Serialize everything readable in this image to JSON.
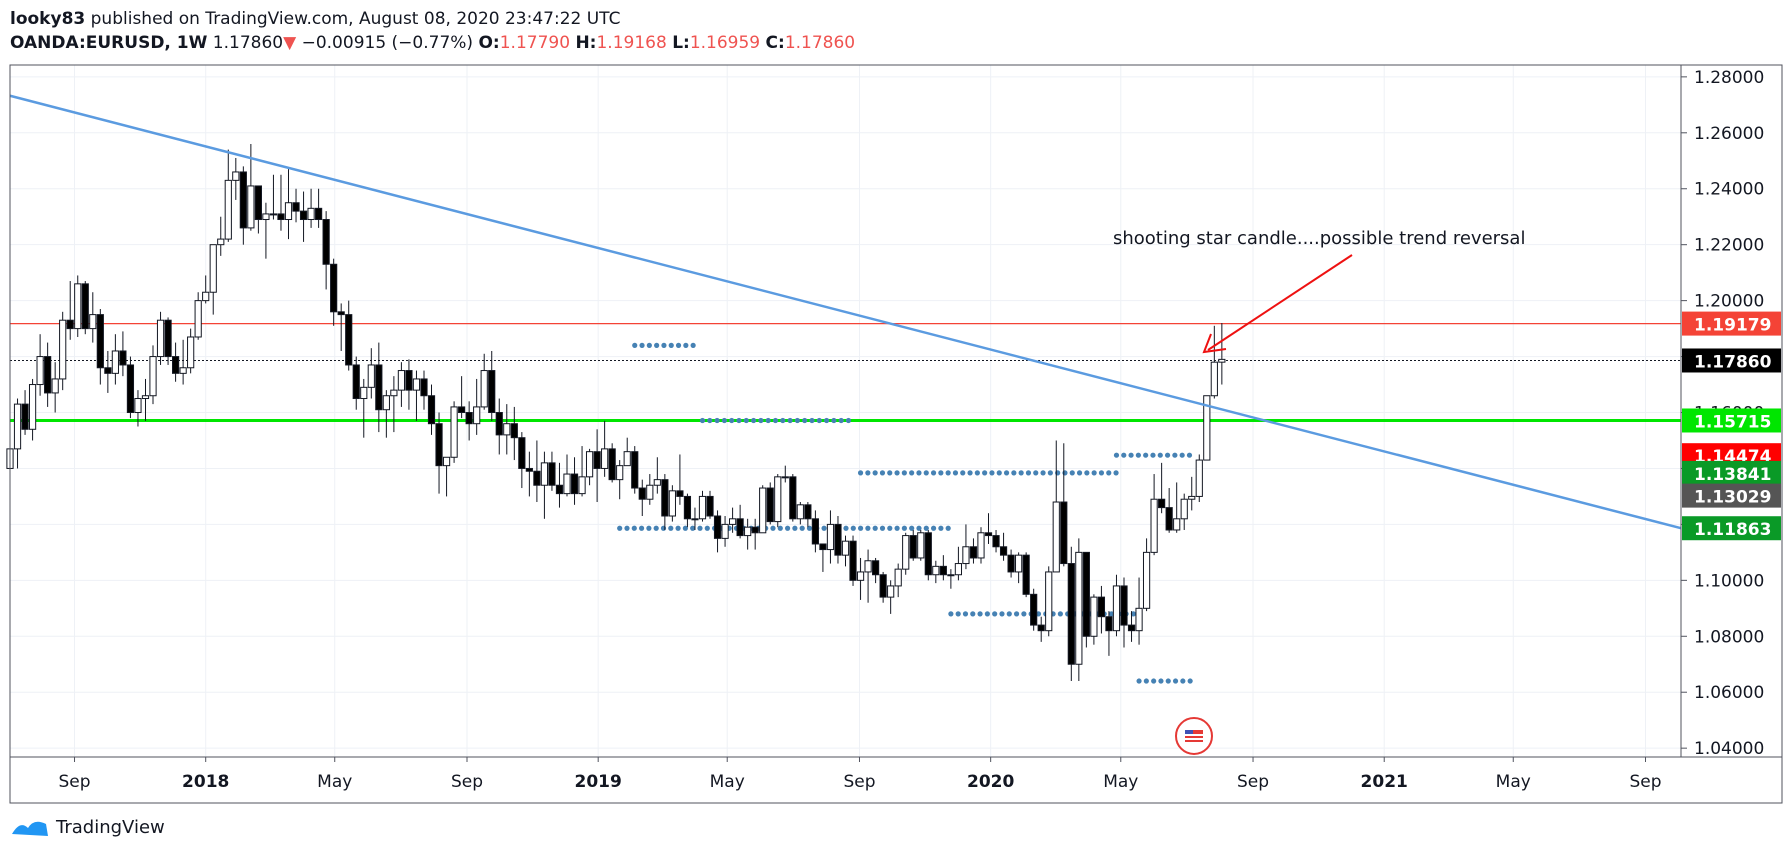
{
  "header": {
    "author": "looky83",
    "published_text": "published on TradingView.com, August 08, 2020 23:47:22 UTC",
    "symbol": "OANDA:EURUSD, 1W",
    "last": "1.17860",
    "change": "−0.00915 (−0.77%)",
    "o_label": "O:",
    "o_value": "1.17790",
    "h_label": "H:",
    "h_value": "1.19168",
    "l_label": "L:",
    "l_value": "1.16959",
    "c_label": "C:",
    "c_value": "1.17860"
  },
  "annotation": {
    "text": "shooting star candle....possible trend reversal"
  },
  "footer": {
    "brand": "TradingView"
  },
  "colors": {
    "up": "#ffffff",
    "down": "#000000",
    "wick": "#131722",
    "trendline": "#5b9be0",
    "support": "#00e600",
    "resistance": "#f44336",
    "dots": "#4682b4",
    "arrow": "#ee1111"
  },
  "chart_data": {
    "type": "candlestick",
    "symbol": "OANDA:EURUSD",
    "interval": "1W",
    "ylim": [
      1.03684,
      1.28424
    ],
    "y_ticks": [
      "1.28000",
      "1.26000",
      "1.24000",
      "1.22000",
      "1.20000",
      "1.18000",
      "1.16000",
      "1.14000",
      "1.12000",
      "1.10000",
      "1.08000",
      "1.06000",
      "1.04000"
    ],
    "x_ticks": [
      "Sep",
      "2018",
      "May",
      "Sep",
      "2019",
      "May",
      "Sep",
      "2020",
      "May",
      "Sep",
      "2021",
      "May",
      "Sep"
    ],
    "price_labels": [
      {
        "text": "1.19179",
        "value": 1.19179,
        "color": "#f44336"
      },
      {
        "text": "1.17860",
        "value": 1.1786,
        "color": "#000000"
      },
      {
        "text": "1.15715",
        "value": 1.15715,
        "color": "#00e600"
      },
      {
        "text": "1.14474",
        "value": 1.14474,
        "color": "#ff0000"
      },
      {
        "text": "1.13841",
        "value": 1.13841,
        "color": "#0a9a27"
      },
      {
        "text": "1.13029",
        "value": 1.13029,
        "color": "#555555"
      },
      {
        "text": "1.11863",
        "value": 1.11863,
        "color": "#0a9a27"
      }
    ],
    "hlines": [
      {
        "name": "resistance",
        "value": 1.19179,
        "style": "solid"
      },
      {
        "name": "last-price",
        "value": 1.1786,
        "style": "dotted"
      },
      {
        "name": "support",
        "value": 1.15715,
        "style": "solid"
      }
    ],
    "trendline": {
      "from": [
        "2017-07-03",
        1.27324
      ],
      "to": [
        "2021-10-04",
        1.11863
      ]
    },
    "dotted_levels": [
      {
        "value": 1.184,
        "from": "2019-02-04",
        "to": "2019-04-01"
      },
      {
        "value": 1.15715,
        "from": "2019-04-08",
        "to": "2019-08-26"
      },
      {
        "value": 1.14474,
        "from": "2020-04-27",
        "to": "2020-07-06"
      },
      {
        "value": 1.13841,
        "from": "2019-09-02",
        "to": "2020-04-27"
      },
      {
        "value": 1.11863,
        "from": "2019-01-21",
        "to": "2019-11-25"
      },
      {
        "value": 1.088,
        "from": "2019-11-25",
        "to": "2020-05-18"
      },
      {
        "value": 1.064,
        "from": "2020-05-18",
        "to": "2020-07-06"
      }
    ],
    "candles": [
      [
        "2017-07-03",
        1.14,
        1.15,
        1.128,
        1.147
      ],
      [
        "2017-07-10",
        1.147,
        1.165,
        1.14,
        1.163
      ],
      [
        "2017-07-17",
        1.163,
        1.168,
        1.152,
        1.154
      ],
      [
        "2017-07-24",
        1.154,
        1.172,
        1.15,
        1.17
      ],
      [
        "2017-07-31",
        1.17,
        1.188,
        1.166,
        1.18
      ],
      [
        "2017-08-07",
        1.18,
        1.185,
        1.162,
        1.167
      ],
      [
        "2017-08-14",
        1.167,
        1.178,
        1.16,
        1.172
      ],
      [
        "2017-08-21",
        1.172,
        1.196,
        1.168,
        1.193
      ],
      [
        "2017-08-28",
        1.193,
        1.207,
        1.186,
        1.19
      ],
      [
        "2017-09-04",
        1.19,
        1.209,
        1.187,
        1.206
      ],
      [
        "2017-09-11",
        1.206,
        1.207,
        1.188,
        1.19
      ],
      [
        "2017-09-18",
        1.19,
        1.203,
        1.185,
        1.195
      ],
      [
        "2017-09-25",
        1.195,
        1.197,
        1.17,
        1.176
      ],
      [
        "2017-10-02",
        1.176,
        1.182,
        1.167,
        1.174
      ],
      [
        "2017-10-09",
        1.174,
        1.188,
        1.17,
        1.182
      ],
      [
        "2017-10-16",
        1.182,
        1.189,
        1.173,
        1.177
      ],
      [
        "2017-10-23",
        1.177,
        1.18,
        1.158,
        1.16
      ],
      [
        "2017-10-30",
        1.16,
        1.168,
        1.155,
        1.165
      ],
      [
        "2017-11-06",
        1.165,
        1.172,
        1.157,
        1.166
      ],
      [
        "2017-11-13",
        1.166,
        1.184,
        1.163,
        1.18
      ],
      [
        "2017-11-20",
        1.18,
        1.196,
        1.177,
        1.193
      ],
      [
        "2017-11-27",
        1.193,
        1.194,
        1.177,
        1.18
      ],
      [
        "2017-12-04",
        1.18,
        1.185,
        1.171,
        1.174
      ],
      [
        "2017-12-11",
        1.174,
        1.186,
        1.17,
        1.176
      ],
      [
        "2017-12-18",
        1.176,
        1.19,
        1.174,
        1.187
      ],
      [
        "2017-12-25",
        1.187,
        1.203,
        1.186,
        1.2
      ],
      [
        "2018-01-01",
        1.2,
        1.209,
        1.199,
        1.203
      ],
      [
        "2018-01-08",
        1.203,
        1.22,
        1.195,
        1.22
      ],
      [
        "2018-01-15",
        1.22,
        1.23,
        1.216,
        1.222
      ],
      [
        "2018-01-22",
        1.222,
        1.254,
        1.221,
        1.243
      ],
      [
        "2018-01-29",
        1.243,
        1.251,
        1.236,
        1.246
      ],
      [
        "2018-02-05",
        1.246,
        1.248,
        1.22,
        1.226
      ],
      [
        "2018-02-12",
        1.226,
        1.256,
        1.225,
        1.241
      ],
      [
        "2018-02-19",
        1.241,
        1.239,
        1.224,
        1.229
      ],
      [
        "2018-02-26",
        1.229,
        1.235,
        1.215,
        1.231
      ],
      [
        "2018-03-05",
        1.231,
        1.245,
        1.229,
        1.231
      ],
      [
        "2018-03-12",
        1.231,
        1.245,
        1.225,
        1.229
      ],
      [
        "2018-03-19",
        1.229,
        1.247,
        1.222,
        1.235
      ],
      [
        "2018-03-26",
        1.235,
        1.24,
        1.228,
        1.232
      ],
      [
        "2018-04-02",
        1.232,
        1.239,
        1.221,
        1.229
      ],
      [
        "2018-04-09",
        1.229,
        1.24,
        1.226,
        1.233
      ],
      [
        "2018-04-16",
        1.233,
        1.24,
        1.226,
        1.229
      ],
      [
        "2018-04-23",
        1.229,
        1.232,
        1.204,
        1.213
      ],
      [
        "2018-04-30",
        1.213,
        1.215,
        1.191,
        1.196
      ],
      [
        "2018-05-07",
        1.196,
        1.199,
        1.182,
        1.195
      ],
      [
        "2018-05-14",
        1.195,
        1.2,
        1.175,
        1.177
      ],
      [
        "2018-05-21",
        1.177,
        1.18,
        1.161,
        1.165
      ],
      [
        "2018-05-28",
        1.165,
        1.172,
        1.151,
        1.169
      ],
      [
        "2018-06-04",
        1.169,
        1.183,
        1.165,
        1.177
      ],
      [
        "2018-06-11",
        1.177,
        1.185,
        1.153,
        1.161
      ],
      [
        "2018-06-18",
        1.161,
        1.168,
        1.151,
        1.166
      ],
      [
        "2018-06-25",
        1.166,
        1.173,
        1.153,
        1.168
      ],
      [
        "2018-07-02",
        1.168,
        1.178,
        1.162,
        1.175
      ],
      [
        "2018-07-09",
        1.175,
        1.179,
        1.161,
        1.168
      ],
      [
        "2018-07-16",
        1.168,
        1.175,
        1.157,
        1.172
      ],
      [
        "2018-07-23",
        1.172,
        1.175,
        1.161,
        1.166
      ],
      [
        "2018-07-30",
        1.166,
        1.17,
        1.152,
        1.156
      ],
      [
        "2018-08-06",
        1.156,
        1.16,
        1.131,
        1.141
      ],
      [
        "2018-08-13",
        1.141,
        1.144,
        1.13,
        1.144
      ],
      [
        "2018-08-20",
        1.144,
        1.164,
        1.142,
        1.162
      ],
      [
        "2018-08-27",
        1.162,
        1.173,
        1.158,
        1.16
      ],
      [
        "2018-09-03",
        1.16,
        1.164,
        1.15,
        1.156
      ],
      [
        "2018-09-10",
        1.156,
        1.172,
        1.152,
        1.162
      ],
      [
        "2018-09-17",
        1.162,
        1.181,
        1.161,
        1.175
      ],
      [
        "2018-09-24",
        1.175,
        1.182,
        1.157,
        1.16
      ],
      [
        "2018-10-01",
        1.16,
        1.165,
        1.145,
        1.152
      ],
      [
        "2018-10-08",
        1.152,
        1.163,
        1.145,
        1.156
      ],
      [
        "2018-10-15",
        1.156,
        1.162,
        1.143,
        1.151
      ],
      [
        "2018-10-22",
        1.151,
        1.153,
        1.133,
        1.14
      ],
      [
        "2018-10-29",
        1.14,
        1.146,
        1.13,
        1.139
      ],
      [
        "2018-11-05",
        1.139,
        1.15,
        1.128,
        1.134
      ],
      [
        "2018-11-12",
        1.134,
        1.146,
        1.122,
        1.142
      ],
      [
        "2018-11-19",
        1.142,
        1.146,
        1.132,
        1.134
      ],
      [
        "2018-11-26",
        1.134,
        1.142,
        1.126,
        1.131
      ],
      [
        "2018-12-03",
        1.131,
        1.145,
        1.13,
        1.138
      ],
      [
        "2018-12-10",
        1.138,
        1.144,
        1.127,
        1.131
      ],
      [
        "2018-12-17",
        1.131,
        1.148,
        1.13,
        1.137
      ],
      [
        "2018-12-24",
        1.137,
        1.147,
        1.134,
        1.146
      ],
      [
        "2018-12-31",
        1.146,
        1.154,
        1.128,
        1.14
      ],
      [
        "2019-01-07",
        1.14,
        1.157,
        1.137,
        1.147
      ],
      [
        "2019-01-14",
        1.147,
        1.149,
        1.135,
        1.136
      ],
      [
        "2019-01-21",
        1.136,
        1.143,
        1.129,
        1.141
      ],
      [
        "2019-01-28",
        1.141,
        1.151,
        1.141,
        1.146
      ],
      [
        "2019-02-04",
        1.146,
        1.148,
        1.131,
        1.133
      ],
      [
        "2019-02-11",
        1.133,
        1.136,
        1.123,
        1.129
      ],
      [
        "2019-02-18",
        1.129,
        1.138,
        1.127,
        1.134
      ],
      [
        "2019-02-25",
        1.134,
        1.144,
        1.131,
        1.136
      ],
      [
        "2019-03-04",
        1.136,
        1.138,
        1.118,
        1.123
      ],
      [
        "2019-03-11",
        1.123,
        1.134,
        1.121,
        1.132
      ],
      [
        "2019-03-18",
        1.132,
        1.145,
        1.127,
        1.13
      ],
      [
        "2019-03-25",
        1.13,
        1.131,
        1.119,
        1.122
      ],
      [
        "2019-04-01",
        1.122,
        1.126,
        1.118,
        1.122
      ],
      [
        "2019-04-08",
        1.122,
        1.132,
        1.121,
        1.13
      ],
      [
        "2019-04-15",
        1.13,
        1.132,
        1.122,
        1.123
      ],
      [
        "2019-04-22",
        1.123,
        1.125,
        1.11,
        1.115
      ],
      [
        "2019-04-29",
        1.115,
        1.123,
        1.112,
        1.12
      ],
      [
        "2019-05-06",
        1.12,
        1.126,
        1.117,
        1.122
      ],
      [
        "2019-05-13",
        1.122,
        1.127,
        1.115,
        1.116
      ],
      [
        "2019-05-20",
        1.116,
        1.122,
        1.111,
        1.119
      ],
      [
        "2019-05-27",
        1.119,
        1.122,
        1.111,
        1.117
      ],
      [
        "2019-06-03",
        1.117,
        1.134,
        1.117,
        1.133
      ],
      [
        "2019-06-10",
        1.133,
        1.135,
        1.12,
        1.121
      ],
      [
        "2019-06-17",
        1.121,
        1.138,
        1.119,
        1.137
      ],
      [
        "2019-06-24",
        1.137,
        1.141,
        1.135,
        1.137
      ],
      [
        "2019-07-01",
        1.137,
        1.138,
        1.121,
        1.122
      ],
      [
        "2019-07-08",
        1.122,
        1.128,
        1.12,
        1.127
      ],
      [
        "2019-07-15",
        1.127,
        1.128,
        1.119,
        1.122
      ],
      [
        "2019-07-22",
        1.122,
        1.125,
        1.11,
        1.113
      ],
      [
        "2019-07-29",
        1.113,
        1.113,
        1.103,
        1.111
      ],
      [
        "2019-08-05",
        1.111,
        1.125,
        1.106,
        1.12
      ],
      [
        "2019-08-12",
        1.12,
        1.123,
        1.106,
        1.109
      ],
      [
        "2019-08-19",
        1.109,
        1.116,
        1.105,
        1.114
      ],
      [
        "2019-08-26",
        1.114,
        1.116,
        1.098,
        1.1
      ],
      [
        "2019-09-02",
        1.1,
        1.108,
        1.093,
        1.103
      ],
      [
        "2019-09-09",
        1.103,
        1.111,
        1.092,
        1.107
      ],
      [
        "2019-09-16",
        1.107,
        1.108,
        1.099,
        1.102
      ],
      [
        "2019-09-23",
        1.102,
        1.103,
        1.092,
        1.094
      ],
      [
        "2019-09-30",
        1.094,
        1.1,
        1.088,
        1.098
      ],
      [
        "2019-10-07",
        1.098,
        1.106,
        1.094,
        1.104
      ],
      [
        "2019-10-14",
        1.104,
        1.117,
        1.102,
        1.116
      ],
      [
        "2019-10-21",
        1.116,
        1.118,
        1.107,
        1.108
      ],
      [
        "2019-10-28",
        1.108,
        1.118,
        1.107,
        1.117
      ],
      [
        "2019-11-04",
        1.117,
        1.118,
        1.1,
        1.102
      ],
      [
        "2019-11-11",
        1.102,
        1.107,
        1.099,
        1.105
      ],
      [
        "2019-11-18",
        1.105,
        1.109,
        1.1,
        1.102
      ],
      [
        "2019-11-25",
        1.102,
        1.104,
        1.097,
        1.102
      ],
      [
        "2019-12-02",
        1.102,
        1.112,
        1.1,
        1.106
      ],
      [
        "2019-12-09",
        1.106,
        1.12,
        1.104,
        1.112
      ],
      [
        "2019-12-16",
        1.112,
        1.115,
        1.106,
        1.108
      ],
      [
        "2019-12-23",
        1.108,
        1.119,
        1.106,
        1.117
      ],
      [
        "2019-12-30",
        1.117,
        1.124,
        1.113,
        1.116
      ],
      [
        "2020-01-06",
        1.116,
        1.118,
        1.11,
        1.112
      ],
      [
        "2020-01-13",
        1.112,
        1.117,
        1.107,
        1.109
      ],
      [
        "2020-01-20",
        1.109,
        1.111,
        1.101,
        1.103
      ],
      [
        "2020-01-27",
        1.103,
        1.11,
        1.099,
        1.109
      ],
      [
        "2020-02-03",
        1.109,
        1.11,
        1.094,
        1.095
      ],
      [
        "2020-02-10",
        1.095,
        1.097,
        1.082,
        1.084
      ],
      [
        "2020-02-17",
        1.084,
        1.087,
        1.078,
        1.082
      ],
      [
        "2020-02-24",
        1.082,
        1.105,
        1.08,
        1.103
      ],
      [
        "2020-03-02",
        1.103,
        1.15,
        1.103,
        1.128
      ],
      [
        "2020-03-09",
        1.128,
        1.149,
        1.105,
        1.106
      ],
      [
        "2020-03-16",
        1.106,
        1.112,
        1.064,
        1.07
      ],
      [
        "2020-03-23",
        1.07,
        1.115,
        1.064,
        1.11
      ],
      [
        "2020-03-30",
        1.11,
        1.11,
        1.076,
        1.08
      ],
      [
        "2020-04-06",
        1.08,
        1.095,
        1.077,
        1.094
      ],
      [
        "2020-04-13",
        1.094,
        1.098,
        1.081,
        1.087
      ],
      [
        "2020-04-20",
        1.087,
        1.089,
        1.073,
        1.082
      ],
      [
        "2020-04-27",
        1.082,
        1.102,
        1.08,
        1.098
      ],
      [
        "2020-05-04",
        1.098,
        1.101,
        1.076,
        1.084
      ],
      [
        "2020-05-11",
        1.084,
        1.089,
        1.078,
        1.082
      ],
      [
        "2020-05-18",
        1.082,
        1.101,
        1.077,
        1.09
      ],
      [
        "2020-05-25",
        1.09,
        1.115,
        1.089,
        1.11
      ],
      [
        "2020-06-01",
        1.11,
        1.138,
        1.109,
        1.129
      ],
      [
        "2020-06-08",
        1.129,
        1.142,
        1.124,
        1.126
      ],
      [
        "2020-06-15",
        1.126,
        1.133,
        1.117,
        1.118
      ],
      [
        "2020-06-22",
        1.118,
        1.135,
        1.117,
        1.122
      ],
      [
        "2020-06-29",
        1.122,
        1.131,
        1.118,
        1.129
      ],
      [
        "2020-07-06",
        1.129,
        1.137,
        1.125,
        1.13
      ],
      [
        "2020-07-13",
        1.13,
        1.145,
        1.128,
        1.143
      ],
      [
        "2020-07-20",
        1.143,
        1.166,
        1.143,
        1.166
      ],
      [
        "2020-07-27",
        1.166,
        1.191,
        1.165,
        1.178
      ],
      [
        "2020-08-03",
        1.178,
        1.192,
        1.17,
        1.179
      ]
    ]
  }
}
